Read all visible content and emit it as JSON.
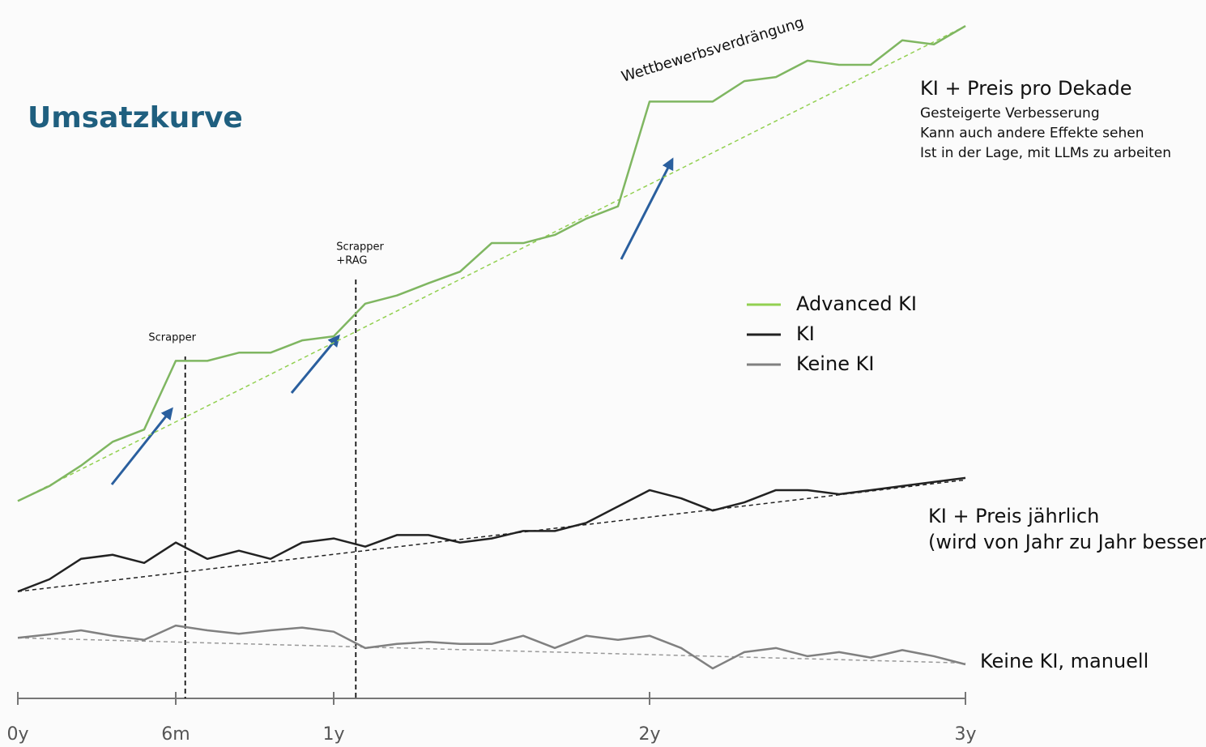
{
  "title": "Umsatzkurve",
  "chart_data": {
    "type": "line",
    "x": [
      0,
      0.1,
      0.2,
      0.3,
      0.4,
      0.5,
      0.6,
      0.7,
      0.8,
      0.9,
      1.0,
      1.1,
      1.2,
      1.3,
      1.4,
      1.5,
      1.6,
      1.7,
      1.8,
      1.9,
      2.0,
      2.1,
      2.2,
      2.3,
      2.4,
      2.5,
      2.6,
      2.7,
      2.8,
      2.9,
      3.0
    ],
    "xlim": [
      0,
      3
    ],
    "xticks": [
      {
        "value": 0,
        "label": "0y"
      },
      {
        "value": 0.5,
        "label": "6m"
      },
      {
        "value": 1,
        "label": "1y"
      },
      {
        "value": 2,
        "label": "2y"
      },
      {
        "value": 3,
        "label": "3y"
      }
    ],
    "ylim": [
      0,
      100
    ],
    "series": [
      {
        "name": "Advanced KI",
        "color": "#7fb661",
        "legend_color": "#92d050",
        "values": [
          29.0,
          31.2,
          34.2,
          37.7,
          39.5,
          49.6,
          49.6,
          50.8,
          50.8,
          52.6,
          53.2,
          58.0,
          59.2,
          61.0,
          62.7,
          66.9,
          66.9,
          68.1,
          70.5,
          72.3,
          87.7,
          87.7,
          87.7,
          90.7,
          91.3,
          93.7,
          93.1,
          93.1,
          96.7,
          96.1,
          98.8
        ]
      },
      {
        "name": "KI",
        "color": "#222222",
        "values": [
          15.7,
          17.5,
          20.5,
          21.1,
          19.9,
          22.9,
          20.5,
          21.7,
          20.5,
          22.9,
          23.5,
          22.3,
          24.0,
          24.0,
          22.9,
          23.5,
          24.6,
          24.6,
          25.8,
          28.2,
          30.6,
          29.4,
          27.6,
          28.8,
          30.6,
          30.6,
          30.0,
          30.6,
          31.2,
          31.8,
          32.4
        ]
      },
      {
        "name": "Keine KI",
        "color": "#808080",
        "values": [
          8.9,
          9.4,
          10.0,
          9.2,
          8.6,
          10.7,
          10.0,
          9.5,
          10.0,
          10.4,
          9.8,
          7.4,
          8.0,
          8.3,
          8.0,
          8.0,
          9.2,
          7.4,
          9.2,
          8.6,
          9.2,
          7.4,
          4.4,
          6.8,
          7.4,
          6.2,
          6.8,
          6.0,
          7.1,
          6.2,
          5.0
        ]
      }
    ],
    "trendlines": [
      {
        "color": "#92d050",
        "values": [
          29.0,
          98.8
        ]
      },
      {
        "color": "#222222",
        "values": [
          15.7,
          32.1
        ]
      },
      {
        "color": "#999999",
        "values": [
          8.9,
          5.2
        ]
      }
    ],
    "annotations": [
      {
        "lines": [
          "Scrapper"
        ],
        "x": 0.53
      },
      {
        "lines": [
          "Scrapper",
          "+RAG"
        ],
        "x": 1.07
      }
    ]
  },
  "headline": "Wettbewerbsverdrängung",
  "notes": [
    {
      "title": "KI + Preis pro Dekade",
      "lines": [
        "Gesteigerte Verbesserung",
        "Kann auch andere Effekte sehen",
        "Ist in der Lage, mit LLMs zu arbeiten"
      ]
    },
    {
      "title": "KI + Preis jährlich",
      "lines": [
        "(wird von Jahr zu Jahr besser"
      ]
    },
    {
      "title": "Keine KI, manuell",
      "lines": []
    }
  ]
}
